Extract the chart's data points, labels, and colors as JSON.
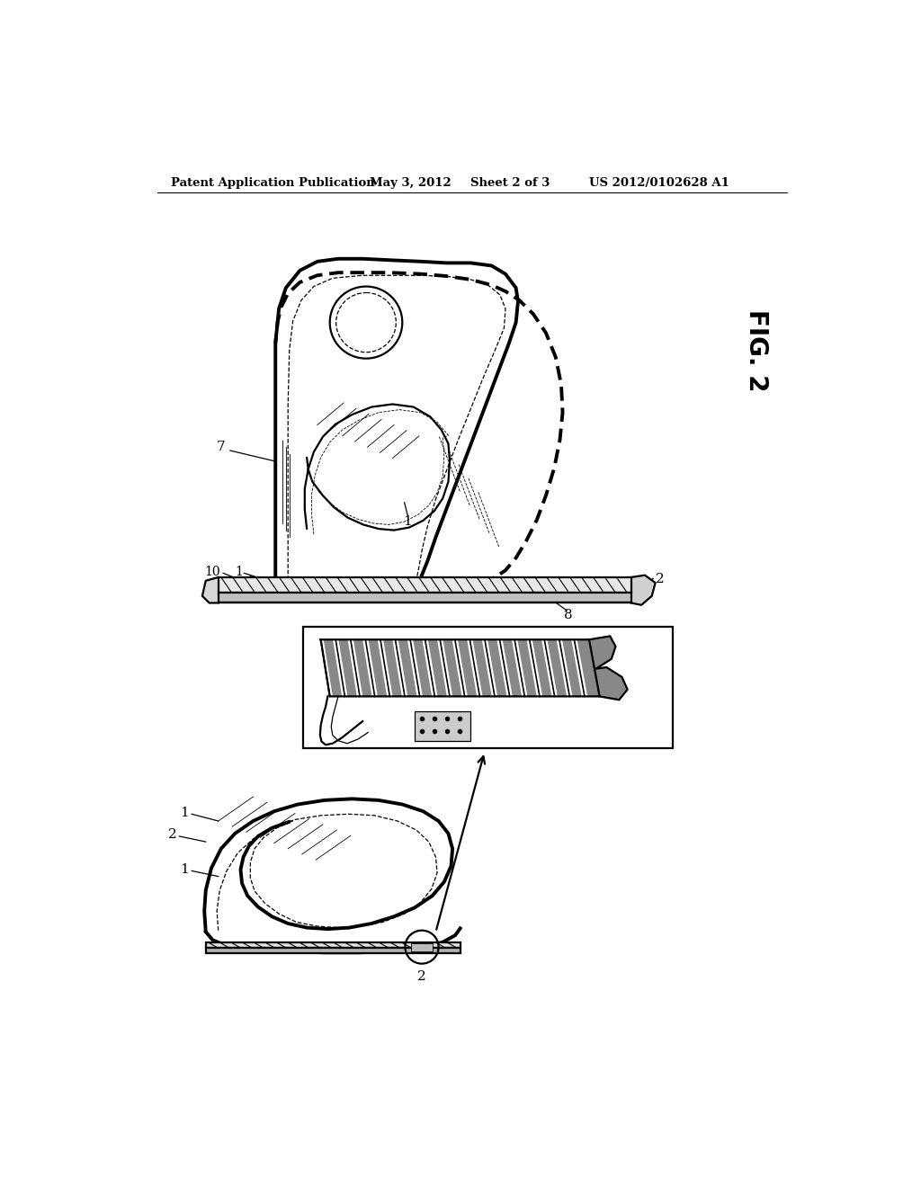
{
  "background_color": "#ffffff",
  "header_text1": "Patent Application Publication",
  "header_text2": "May 3, 2012",
  "header_text3": "Sheet 2 of 3",
  "header_text4": "US 2012/0102628 A1",
  "fig_label": "FIG. 2",
  "line_color": "#000000",
  "lw_thick": 2.8,
  "lw_med": 1.6,
  "lw_thin": 0.9,
  "lw_vthin": 0.6
}
